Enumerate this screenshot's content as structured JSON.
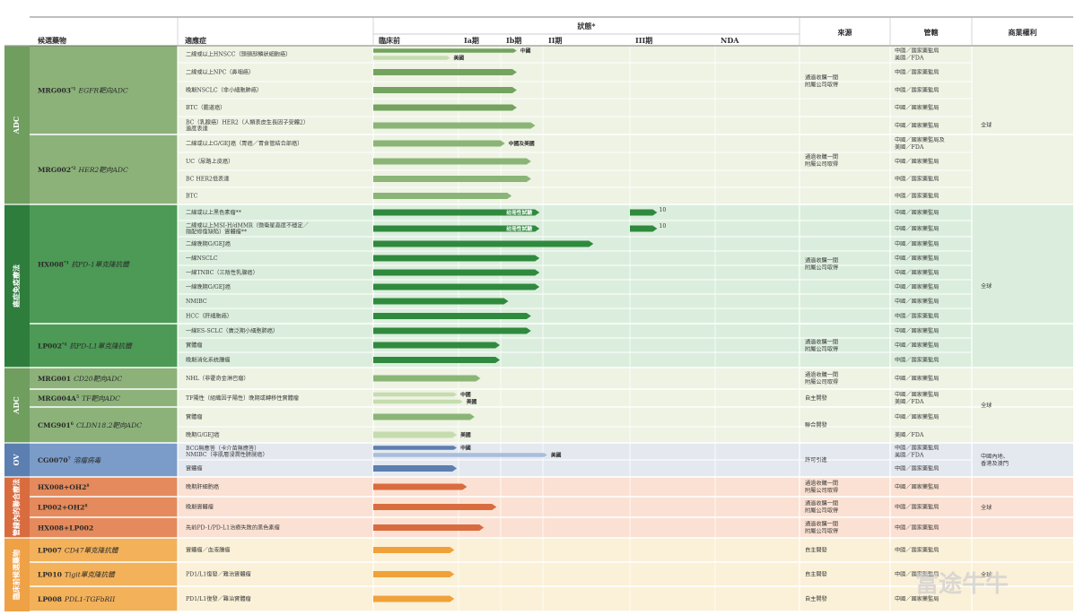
{
  "header": {
    "candidate": "候選藥物",
    "indication": "適應症",
    "status": "狀態*",
    "phases": [
      "臨床前",
      "Ia期",
      "Ib期",
      "II期",
      "III期",
      "NDA"
    ],
    "source": "來源",
    "jurisdiction": "管轄",
    "rights": "商業權利"
  },
  "categories": [
    {
      "label": "ADC",
      "color": "#6f9e5f",
      "start": 0,
      "end": 9
    },
    {
      "label": "癌症免疫療法",
      "color": "#2e7d3c",
      "start": 10,
      "end": 20
    },
    {
      "label": "ADC",
      "color": "#6f9e5f",
      "start": 21,
      "end": 24
    },
    {
      "label": "OV",
      "color": "#5b7fb0",
      "start": 25,
      "end": 26
    },
    {
      "label": "管線內的聯合療法",
      "color": "#d96c3f",
      "start": 27,
      "end": 29
    },
    {
      "label": "臨床前候選藥物",
      "color": "#efa146",
      "start": 30,
      "end": 32
    }
  ],
  "drugs": [
    {
      "name": "MRG003",
      "sup": "*1",
      "target": "EGFR靶向ADC",
      "start": 0,
      "end": 4,
      "color": "#8cb27a",
      "bg": "#eef3e4"
    },
    {
      "name": "MRG002",
      "sup": "*2",
      "target": "HER2靶向ADC",
      "start": 5,
      "end": 9,
      "color": "#8cb27a",
      "bg": "#eef3e4"
    },
    {
      "name": "HX008",
      "sup": "*3",
      "target": "抗PD-1單克隆抗體",
      "start": 10,
      "end": 17,
      "color": "#4c9a55",
      "bg": "#dbeedd"
    },
    {
      "name": "LP002",
      "sup": "*4",
      "target": "抗PD-L1單克隆抗體",
      "start": 18,
      "end": 20,
      "color": "#4c9a55",
      "bg": "#dbeedd"
    },
    {
      "name": "MRG001",
      "sup": "",
      "target": "CD20靶向ADC",
      "start": 21,
      "end": 21,
      "color": "#8cb27a",
      "bg": "#eef3e4"
    },
    {
      "name": "MRG004A",
      "sup": "5",
      "target": "TF靶向ADC",
      "start": 22,
      "end": 22,
      "color": "#8cb27a",
      "bg": "#eef3e4"
    },
    {
      "name": "CMG901",
      "sup": "6",
      "target": "CLDN18.2靶向ADC",
      "start": 23,
      "end": 24,
      "color": "#8cb27a",
      "bg": "#eef3e4"
    },
    {
      "name": "CG0070",
      "sup": "7",
      "target": "溶瘤病毒",
      "start": 25,
      "end": 26,
      "color": "#7b9cc8",
      "bg": "#e4e9f0"
    },
    {
      "name": "HX008+OH2",
      "sup": "8",
      "target": "",
      "start": 27,
      "end": 27,
      "color": "#e58a5c",
      "bg": "#fbe1d3"
    },
    {
      "name": "LP002+OH2",
      "sup": "8",
      "target": "",
      "start": 28,
      "end": 28,
      "color": "#e58a5c",
      "bg": "#fbe1d3"
    },
    {
      "name": "HX008+LP002",
      "sup": "",
      "target": "",
      "start": 29,
      "end": 29,
      "color": "#e58a5c",
      "bg": "#fbe1d3"
    },
    {
      "name": "LP007",
      "sup": "",
      "target": "CD47單克隆抗體",
      "start": 30,
      "end": 30,
      "color": "#f3b15a",
      "bg": "#fbf1d8"
    },
    {
      "name": "LP010",
      "sup": "",
      "target": "Tigit單克隆抗體",
      "start": 31,
      "end": 31,
      "color": "#f3b15a",
      "bg": "#fbf1d8"
    },
    {
      "name": "LP008",
      "sup": "",
      "target": "PDL1-TGFbRII",
      "start": 32,
      "end": 32,
      "color": "#f3b15a",
      "bg": "#fbf1d8"
    }
  ],
  "rows": [
    {
      "ind": [
        "二線或以上HNSCC（頭頸部鱗狀細胞癌）"
      ],
      "bars": [
        {
          "s": 0,
          "e": 2.38,
          "c": "#73a35f",
          "label": "中國"
        },
        {
          "s": 0,
          "e": 0.9,
          "c": "#c6dcaf",
          "label": "美國"
        }
      ],
      "jur": [
        "中國／國家藥監局",
        "美國／FDA"
      ]
    },
    {
      "ind": [
        "二線或以上NPC（鼻咽癌）"
      ],
      "bars": [
        {
          "s": 0,
          "e": 2.38,
          "c": "#73a35f"
        }
      ],
      "jur": [
        "中國／國家藥監局"
      ]
    },
    {
      "ind": [
        "晚期NSCLC（非小細胞肺癌）"
      ],
      "bars": [
        {
          "s": 0,
          "e": 2.38,
          "c": "#73a35f"
        }
      ],
      "jur": [
        "中國／國家藥監局"
      ]
    },
    {
      "ind": [
        "BTC（膽道癌）"
      ],
      "bars": [
        {
          "s": 0,
          "e": 2.38,
          "c": "#73a35f"
        }
      ],
      "jur": [
        "中國／國家藥監局"
      ]
    },
    {
      "ind": [
        "BC（乳腺癌）HER2（人類表皮生長因子受體2）",
        "過度表達"
      ],
      "bars": [
        {
          "s": 0,
          "e": 2.82,
          "c": "#8ab577"
        }
      ],
      "jur": [
        "中國／國家藥監局"
      ]
    },
    {
      "ind": [
        "二線或以上G/GEJ癌（胃癌／胃食管結合部癌）"
      ],
      "bars": [
        {
          "s": 0,
          "e": 2.1,
          "c": "#8ab577",
          "label": "中國及美國"
        }
      ],
      "jur": [
        "中國／國家藥監局及",
        "美國／FDA"
      ]
    },
    {
      "ind": [
        "UC（尿路上皮癌）"
      ],
      "bars": [
        {
          "s": 0,
          "e": 2.72,
          "c": "#8ab577"
        }
      ],
      "jur": [
        "中國／國家藥監局"
      ]
    },
    {
      "ind": [
        "BC HER2低表達"
      ],
      "bars": [
        {
          "s": 0,
          "e": 2.72,
          "c": "#8ab577"
        }
      ],
      "jur": [
        "中國／國家藥監局"
      ]
    },
    {
      "ind": [
        "BTC"
      ],
      "bars": [
        {
          "s": 0,
          "e": 2.26,
          "c": "#8ab577"
        }
      ],
      "jur": [
        "中國／國家藥監局"
      ]
    },
    {
      "ind": [
        "NHL（非霍奇金淋巴瘤）"
      ],
      "bars": [],
      "jur": []
    },
    {
      "ind": [
        "二線或以上黑色素瘤**"
      ],
      "bars": [
        {
          "s": 0,
          "e": 2.92,
          "c": "#2f8a3e",
          "label": "註冊性試驗",
          "inside": true
        },
        {
          "s": 4.0,
          "e": 4.32,
          "c": "#2f8a3e",
          "note": "10"
        }
      ],
      "jur": [
        "中國／國家藥監局"
      ]
    },
    {
      "ind": [
        "二線或以上MSI-H/dMMR（微衛星高度不穩定／",
        "錯配修復缺陷）實體瘤**"
      ],
      "bars": [
        {
          "s": 0,
          "e": 2.92,
          "c": "#2f8a3e",
          "label": "註冊性試驗",
          "inside": true
        },
        {
          "s": 4.0,
          "e": 4.32,
          "c": "#2f8a3e",
          "note": "10"
        }
      ],
      "jur": [
        "中國／國家藥監局"
      ]
    },
    {
      "ind": [
        "二線晚期G/GEJ癌"
      ],
      "bars": [
        {
          "s": 0,
          "e": 3.58,
          "c": "#2f8a3e"
        }
      ],
      "jur": [
        "中國／國家藥監局"
      ]
    },
    {
      "ind": [
        "一線NSCLC"
      ],
      "bars": [
        {
          "s": 0,
          "e": 2.92,
          "c": "#2f8a3e"
        }
      ],
      "jur": [
        "中國／國家藥監局"
      ]
    },
    {
      "ind": [
        "一線TNBC（三陰性乳腺癌）"
      ],
      "bars": [
        {
          "s": 0,
          "e": 2.92,
          "c": "#2f8a3e"
        }
      ],
      "jur": [
        "中國／國家藥監局"
      ]
    },
    {
      "ind": [
        "一線晚期G/GEJ癌"
      ],
      "bars": [
        {
          "s": 0,
          "e": 2.92,
          "c": "#2f8a3e"
        }
      ],
      "jur": [
        "中國／國家藥監局"
      ]
    },
    {
      "ind": [
        "NMIBC"
      ],
      "bars": [
        {
          "s": 0,
          "e": 2.18,
          "c": "#2f8a3e"
        }
      ],
      "jur": [
        "中國／國家藥監局"
      ]
    },
    {
      "ind": [
        "HCC（肝細胞癌）"
      ],
      "bars": [
        {
          "s": 0,
          "e": 2.72,
          "c": "#2f8a3e"
        }
      ],
      "jur": [
        "中國／國家藥監局"
      ]
    },
    {
      "ind": [
        "一線ES-SCLC（廣泛期小細胞肺癌）"
      ],
      "bars": [
        {
          "s": 0,
          "e": 2.72,
          "c": "#2f8a3e"
        }
      ],
      "jur": [
        "中國／國家藥監局"
      ]
    },
    {
      "ind": [
        "實體瘤"
      ],
      "bars": [
        {
          "s": 0,
          "e": 1.98,
          "c": "#2f8a3e"
        }
      ],
      "jur": [
        "中國／國家藥監局"
      ]
    },
    {
      "ind": [
        "晚期消化系統腫瘤"
      ],
      "bars": [
        {
          "s": 0,
          "e": 1.98,
          "c": "#2f8a3e"
        }
      ],
      "jur": [
        "中國／國家藥監局"
      ]
    },
    {
      "ind": [
        "NHL（非霍奇金淋巴瘤）"
      ],
      "bars": [
        {
          "s": 0,
          "e": 1.52,
          "c": "#8ab577"
        }
      ],
      "jur": [
        "中國／國家藥監局"
      ]
    },
    {
      "ind": [
        "TF陽性（組織因子陽性）晚期或轉移性實體瘤"
      ],
      "bars": [
        {
          "s": 0,
          "e": 0.98,
          "c": "#c6dcaf",
          "label": "中國"
        },
        {
          "s": 0,
          "e": 1.1,
          "c": "#c6dcaf",
          "label": "美國"
        }
      ],
      "jur": [
        "中國／國家藥監局",
        "美國／FDA"
      ]
    },
    {
      "ind": [
        "實體瘤"
      ],
      "bars": [
        {
          "s": 0,
          "e": 1.38,
          "c": "#8ab577"
        }
      ],
      "jur": [
        "中國／國家藥監局"
      ]
    },
    {
      "ind": [
        "晚期G/GEJ癌"
      ],
      "bars": [
        {
          "s": 0,
          "e": 0.98,
          "c": "#c6dcaf",
          "label": "美國"
        }
      ],
      "jur": [
        "美國／FDA"
      ]
    },
    {
      "ind": [
        "BCG無應答（卡介苗無應答）",
        "NMIBC（非肌層浸潤性膀胱癌）"
      ],
      "bars": [
        {
          "s": 0,
          "e": 0.98,
          "c": "#5b7fb0",
          "label": "中國"
        },
        {
          "s": 0,
          "e": 3.05,
          "c": "#a9bedb",
          "label": "美國"
        }
      ],
      "jur": [
        "中國／國家藥監局",
        "美國／FDA"
      ]
    },
    {
      "ind": [
        "實體瘤"
      ],
      "bars": [
        {
          "s": 0,
          "e": 0.98,
          "c": "#5b7fb0"
        }
      ],
      "jur": [
        "中國／國家藥監局"
      ]
    },
    {
      "ind": [
        "晚期肝細胞癌"
      ],
      "bars": [
        {
          "s": 0,
          "e": 1.2,
          "c": "#d96c3f"
        }
      ],
      "jur": [
        "中國／國家藥監局"
      ]
    },
    {
      "ind": [
        "晚期實體瘤"
      ],
      "bars": [
        {
          "s": 0,
          "e": 1.9,
          "c": "#d96c3f"
        }
      ],
      "jur": [
        "中國／國家藥監局"
      ]
    },
    {
      "ind": [
        "先前PD-1/PD-L1治療失敗的黑色素瘤"
      ],
      "bars": [
        {
          "s": 0,
          "e": 1.6,
          "c": "#d96c3f"
        }
      ],
      "jur": [
        "中國／國家藥監局"
      ]
    },
    {
      "ind": [
        "實體瘤／血液腫瘤"
      ],
      "bars": [
        {
          "s": 0,
          "e": 0.95,
          "c": "#f0a13a"
        }
      ],
      "jur": [
        "中國／國家藥監局"
      ]
    },
    {
      "ind": [
        "PD1/L1復發／難治實體瘤"
      ],
      "bars": [
        {
          "s": 0,
          "e": 0.95,
          "c": "#f0a13a"
        }
      ],
      "jur": [
        "中國／國家藥監局"
      ]
    },
    {
      "ind": [
        "PD1/L1復發／難治實體瘤"
      ],
      "bars": [
        {
          "s": 0,
          "e": 0.95,
          "c": "#f0a13a"
        }
      ],
      "jur": [
        "中國／國家藥監局"
      ]
    }
  ],
  "sources": [
    {
      "start": 0,
      "end": 3,
      "text": [
        "通過收購一間",
        "附屬公司取得"
      ]
    },
    {
      "start": 4,
      "end": 8,
      "text": [
        "通過收購一間",
        "附屬公司取得"
      ]
    },
    {
      "start": 10,
      "end": 17,
      "text": [
        "通過收購一間",
        "附屬公司取得"
      ]
    },
    {
      "start": 18,
      "end": 20,
      "text": [
        "通過收購一間",
        "附屬公司取得"
      ]
    },
    {
      "start": 21,
      "end": 21,
      "text": [
        "通過收購一間",
        "附屬公司取得"
      ]
    },
    {
      "start": 22,
      "end": 22,
      "text": [
        "自主開發"
      ]
    },
    {
      "start": 23,
      "end": 24,
      "text": [
        "聯合開發"
      ]
    },
    {
      "start": 25,
      "end": 26,
      "text": [
        "許可引進"
      ]
    },
    {
      "start": 27,
      "end": 27,
      "text": [
        "通過收購一間",
        "附屬公司取得"
      ]
    },
    {
      "start": 28,
      "end": 28,
      "text": [
        "通過收購一間",
        "附屬公司取得"
      ]
    },
    {
      "start": 29,
      "end": 29,
      "text": [
        "通過收購一間",
        "附屬公司取得"
      ]
    },
    {
      "start": 30,
      "end": 30,
      "text": [
        "自主開發"
      ]
    },
    {
      "start": 31,
      "end": 31,
      "text": [
        "自主開發"
      ]
    },
    {
      "start": 32,
      "end": 32,
      "text": [
        "自主開發"
      ]
    }
  ],
  "rights": [
    {
      "start": 0,
      "end": 9,
      "text": [
        "全球"
      ],
      "bg": "#eef3e4"
    },
    {
      "start": 10,
      "end": 20,
      "text": [
        "全球"
      ],
      "bg": "#dbeedd"
    },
    {
      "start": 21,
      "end": 24,
      "text": [
        "全球"
      ],
      "bg": "#eef3e4"
    },
    {
      "start": 25,
      "end": 26,
      "text": [
        "中國內地、",
        "香港及澳門"
      ],
      "bg": "#e4e9f0"
    },
    {
      "start": 27,
      "end": 29,
      "text": [
        "全球"
      ],
      "bg": "#fbe1d3"
    },
    {
      "start": 30,
      "end": 32,
      "text": [
        "全球"
      ],
      "bg": "#fbf1d8"
    }
  ],
  "watermark": "富途牛牛"
}
